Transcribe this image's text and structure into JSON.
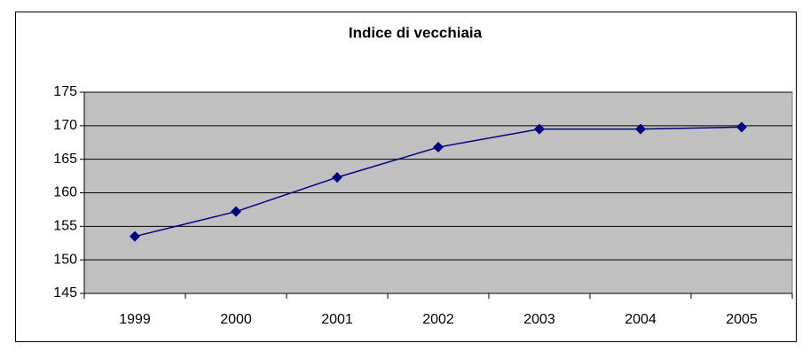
{
  "chart_data": {
    "type": "line",
    "title": "Indice di vecchiaia",
    "categories": [
      "1999",
      "2000",
      "2001",
      "2002",
      "2003",
      "2004",
      "2005"
    ],
    "values": [
      153.5,
      157.2,
      162.3,
      166.8,
      169.5,
      169.5,
      169.8
    ],
    "color": "#000080",
    "ylim": [
      145,
      175
    ],
    "yticks": [
      145,
      150,
      155,
      160,
      165,
      170,
      175
    ],
    "grid": true
  }
}
